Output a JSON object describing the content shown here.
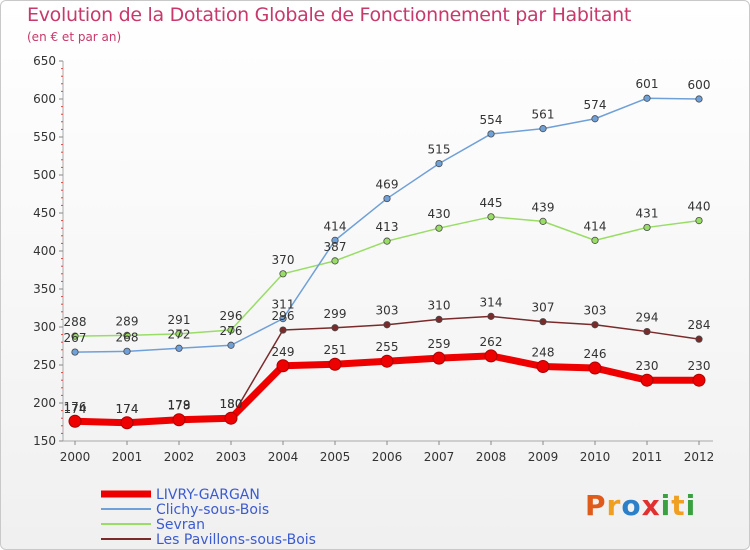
{
  "title": "Evolution de la Dotation Globale de Fonctionnement par Habitant",
  "subtitle": "(en € et par an)",
  "logo_text": "Proxiti",
  "logo_colors": [
    "#e05a1a",
    "#f0a020",
    "#2d7fc8",
    "#e03030",
    "#3aa040",
    "#f0a020",
    "#3aa040"
  ],
  "chart_data": {
    "type": "line",
    "title": "Evolution de la Dotation Globale de Fonctionnement par Habitant",
    "subtitle": "(en € et par an)",
    "x": [
      "2000",
      "2001",
      "2002",
      "2003",
      "2004",
      "2005",
      "2006",
      "2007",
      "2008",
      "2009",
      "2010",
      "2011",
      "2012"
    ],
    "ylim": [
      150,
      650
    ],
    "yticks": [
      150,
      200,
      250,
      300,
      350,
      400,
      450,
      500,
      550,
      600,
      650
    ],
    "grid": false,
    "legend_position": "bottom-left",
    "series": [
      {
        "name": "LIVRY-GARGAN",
        "color": "#ee0000",
        "values": [
          176,
          174,
          178,
          180,
          249,
          251,
          255,
          259,
          262,
          248,
          246,
          230,
          230
        ]
      },
      {
        "name": "Clichy-sous-Bois",
        "color": "#6fa0d8",
        "values": [
          267,
          268,
          272,
          276,
          311,
          414,
          469,
          515,
          554,
          561,
          574,
          601,
          600
        ]
      },
      {
        "name": "Sevran",
        "color": "#99dd66",
        "values": [
          288,
          289,
          291,
          296,
          370,
          387,
          413,
          430,
          445,
          439,
          414,
          431,
          440
        ]
      },
      {
        "name": "Les Pavillons-sous-Bois",
        "color": "#7a2a2a",
        "values": [
          174,
          174,
          179,
          180,
          296,
          299,
          303,
          310,
          314,
          307,
          303,
          294,
          284
        ]
      }
    ]
  }
}
